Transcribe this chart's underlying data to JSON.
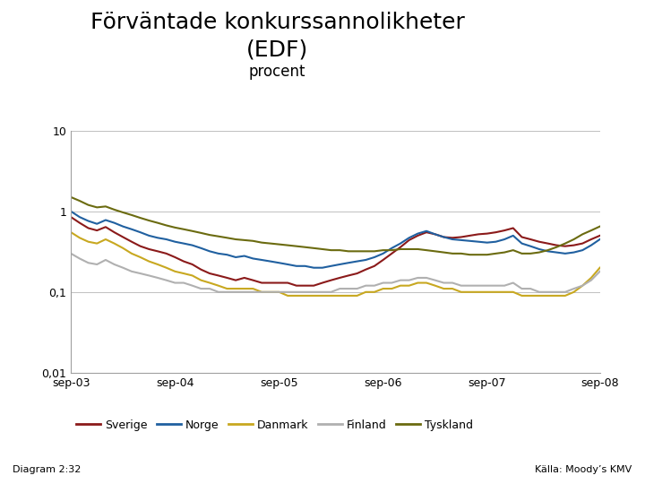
{
  "title_line1": "Förväntade konkurssannolikheter",
  "title_line2": "(EDF)",
  "subtitle": "procent",
  "title_fontsize": 18,
  "subtitle_fontsize": 12,
  "background_color": "#ffffff",
  "footer_bar_color": "#1B3F8B",
  "footer_text_left": "Diagram 2:32",
  "footer_text_right": "Källa: Moody’s KMV",
  "xticklabels": [
    "sep-03",
    "sep-04",
    "sep-05",
    "sep-06",
    "sep-07",
    "sep-08"
  ],
  "yticks": [
    0.01,
    0.1,
    1,
    10
  ],
  "yticklabels": [
    "0,01",
    "0,1",
    "1",
    "10"
  ],
  "ylim": [
    0.01,
    10
  ],
  "legend_labels": [
    "Sverige",
    "Norge",
    "Danmark",
    "Finland",
    "Tyskland"
  ],
  "line_colors": [
    "#8B1A1A",
    "#2060A0",
    "#C8A820",
    "#B0B0B0",
    "#6B6B10"
  ],
  "line_widths": [
    1.5,
    1.5,
    1.5,
    1.5,
    1.5
  ],
  "Sverige": [
    0.85,
    0.72,
    0.62,
    0.58,
    0.64,
    0.55,
    0.48,
    0.42,
    0.37,
    0.34,
    0.32,
    0.3,
    0.27,
    0.24,
    0.22,
    0.19,
    0.17,
    0.16,
    0.15,
    0.14,
    0.15,
    0.14,
    0.13,
    0.13,
    0.13,
    0.13,
    0.12,
    0.12,
    0.12,
    0.13,
    0.14,
    0.15,
    0.16,
    0.17,
    0.19,
    0.21,
    0.25,
    0.3,
    0.36,
    0.44,
    0.5,
    0.55,
    0.52,
    0.48,
    0.47,
    0.48,
    0.5,
    0.52,
    0.53,
    0.55,
    0.58,
    0.62,
    0.48,
    0.45,
    0.42,
    0.4,
    0.38,
    0.37,
    0.38,
    0.4,
    0.45,
    0.5
  ],
  "Norge": [
    1.0,
    0.85,
    0.76,
    0.7,
    0.78,
    0.72,
    0.65,
    0.6,
    0.55,
    0.5,
    0.47,
    0.45,
    0.42,
    0.4,
    0.38,
    0.35,
    0.32,
    0.3,
    0.29,
    0.27,
    0.28,
    0.26,
    0.25,
    0.24,
    0.23,
    0.22,
    0.21,
    0.21,
    0.2,
    0.2,
    0.21,
    0.22,
    0.23,
    0.24,
    0.25,
    0.27,
    0.3,
    0.35,
    0.4,
    0.47,
    0.53,
    0.57,
    0.52,
    0.48,
    0.45,
    0.44,
    0.43,
    0.42,
    0.41,
    0.42,
    0.45,
    0.5,
    0.4,
    0.37,
    0.34,
    0.32,
    0.31,
    0.3,
    0.31,
    0.33,
    0.38,
    0.45
  ],
  "Danmark": [
    0.55,
    0.47,
    0.42,
    0.4,
    0.45,
    0.4,
    0.35,
    0.3,
    0.27,
    0.24,
    0.22,
    0.2,
    0.18,
    0.17,
    0.16,
    0.14,
    0.13,
    0.12,
    0.11,
    0.11,
    0.11,
    0.11,
    0.1,
    0.1,
    0.1,
    0.09,
    0.09,
    0.09,
    0.09,
    0.09,
    0.09,
    0.09,
    0.09,
    0.09,
    0.1,
    0.1,
    0.11,
    0.11,
    0.12,
    0.12,
    0.13,
    0.13,
    0.12,
    0.11,
    0.11,
    0.1,
    0.1,
    0.1,
    0.1,
    0.1,
    0.1,
    0.1,
    0.09,
    0.09,
    0.09,
    0.09,
    0.09,
    0.09,
    0.1,
    0.12,
    0.15,
    0.2
  ],
  "Finland": [
    0.3,
    0.26,
    0.23,
    0.22,
    0.25,
    0.22,
    0.2,
    0.18,
    0.17,
    0.16,
    0.15,
    0.14,
    0.13,
    0.13,
    0.12,
    0.11,
    0.11,
    0.1,
    0.1,
    0.1,
    0.1,
    0.1,
    0.1,
    0.1,
    0.1,
    0.1,
    0.1,
    0.1,
    0.1,
    0.1,
    0.1,
    0.11,
    0.11,
    0.11,
    0.12,
    0.12,
    0.13,
    0.13,
    0.14,
    0.14,
    0.15,
    0.15,
    0.14,
    0.13,
    0.13,
    0.12,
    0.12,
    0.12,
    0.12,
    0.12,
    0.12,
    0.13,
    0.11,
    0.11,
    0.1,
    0.1,
    0.1,
    0.1,
    0.11,
    0.12,
    0.14,
    0.18
  ],
  "Tyskland": [
    1.5,
    1.35,
    1.2,
    1.12,
    1.15,
    1.05,
    0.97,
    0.9,
    0.83,
    0.77,
    0.72,
    0.67,
    0.63,
    0.6,
    0.57,
    0.54,
    0.51,
    0.49,
    0.47,
    0.45,
    0.44,
    0.43,
    0.41,
    0.4,
    0.39,
    0.38,
    0.37,
    0.36,
    0.35,
    0.34,
    0.33,
    0.33,
    0.32,
    0.32,
    0.32,
    0.32,
    0.33,
    0.33,
    0.34,
    0.34,
    0.34,
    0.33,
    0.32,
    0.31,
    0.3,
    0.3,
    0.29,
    0.29,
    0.29,
    0.3,
    0.31,
    0.33,
    0.3,
    0.3,
    0.31,
    0.33,
    0.36,
    0.4,
    0.45,
    0.52,
    0.58,
    0.65
  ]
}
